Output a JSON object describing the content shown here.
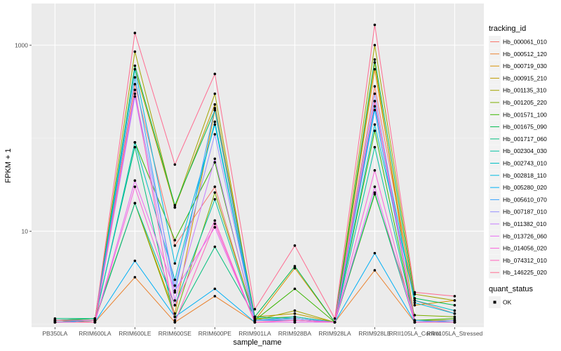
{
  "chart_data": {
    "type": "line",
    "title": "",
    "xlabel": "sample_name",
    "ylabel": "FPKM + 1",
    "yscale": "log10",
    "ylim": [
      0.93,
      2800
    ],
    "yticks": [
      10,
      1000
    ],
    "ytick_labels": [
      "10",
      "1000"
    ],
    "grid": true,
    "categories": [
      "PB350LA",
      "RRIM600LA",
      "RRIM600LE",
      "RRIM600SE",
      "RRIM600PE",
      "RRIM901LA",
      "RRIM928BA",
      "RRIM928LA",
      "RRIM928LE",
      "RRII105LA_Control",
      "RRII105LA_Stressed"
    ],
    "legend": {
      "position": "right",
      "color_title": "tracking_id",
      "shape_title": "quant_status",
      "shape_entries": [
        "OK"
      ]
    },
    "series": [
      {
        "name": "Hb_000061_010",
        "color": "#F8766D",
        "values": [
          1.05,
          1.1,
          380,
          7.0,
          30,
          1.1,
          1.1,
          1.05,
          360,
          1.8,
          1.3
        ]
      },
      {
        "name": "Hb_000512_120",
        "color": "#EA8331",
        "values": [
          1.1,
          1.05,
          3.2,
          1.05,
          2.0,
          1.05,
          1.05,
          1.05,
          3.8,
          1.05,
          1.05
        ]
      },
      {
        "name": "Hb_000719_030",
        "color": "#D89000",
        "values": [
          1.05,
          1.1,
          20,
          1.3,
          200,
          1.1,
          4.0,
          1.05,
          550,
          1.6,
          1.8
        ]
      },
      {
        "name": "Hb_000915_210",
        "color": "#C09B00",
        "values": [
          1.1,
          1.1,
          550,
          18,
          230,
          1.2,
          1.3,
          1.05,
          650,
          1.1,
          1.1
        ]
      },
      {
        "name": "Hb_001135_310",
        "color": "#A3A500",
        "values": [
          1.05,
          1.1,
          850,
          18,
          300,
          1.1,
          1.4,
          1.05,
          1000,
          2.1,
          1.8
        ]
      },
      {
        "name": "Hb_001205_220",
        "color": "#7CAE00",
        "values": [
          1.1,
          1.15,
          20,
          1.2,
          26,
          1.15,
          1.2,
          1.05,
          25,
          1.25,
          1.2
        ]
      },
      {
        "name": "Hb_001571_100",
        "color": "#39B600",
        "values": [
          1.05,
          1.1,
          90,
          8.0,
          55,
          1.1,
          2.4,
          1.05,
          120,
          1.1,
          1.15
        ]
      },
      {
        "name": "Hb_001675_090",
        "color": "#00BB4E",
        "values": [
          1.1,
          1.15,
          600,
          19,
          200,
          1.2,
          4.2,
          1.05,
          700,
          1.9,
          1.6
        ]
      },
      {
        "name": "Hb_001717_060",
        "color": "#00BF7D",
        "values": [
          1.15,
          1.15,
          80,
          1.1,
          6.8,
          1.2,
          1.15,
          1.05,
          26,
          1.05,
          1.1
        ]
      },
      {
        "name": "Hb_002304_030",
        "color": "#00C1A3",
        "values": [
          1.1,
          1.1,
          20,
          1.6,
          22,
          1.1,
          1.1,
          1.05,
          80,
          1.1,
          1.05
        ]
      },
      {
        "name": "Hb_002743_010",
        "color": "#00BFC4",
        "values": [
          1.05,
          1.1,
          90,
          3.0,
          150,
          1.1,
          1.2,
          1.05,
          140,
          1.8,
          1.4
        ]
      },
      {
        "name": "Hb_002818_110",
        "color": "#00BAE0",
        "values": [
          1.05,
          1.1,
          550,
          4.5,
          140,
          1.1,
          1.15,
          1.05,
          220,
          1.7,
          1.3
        ]
      },
      {
        "name": "Hb_005280_020",
        "color": "#00B0F6",
        "values": [
          1.05,
          1.05,
          4.8,
          1.2,
          2.4,
          1.05,
          1.05,
          1.05,
          5.8,
          1.05,
          1.05
        ]
      },
      {
        "name": "Hb_005610_070",
        "color": "#35A2FF",
        "values": [
          1.05,
          1.1,
          450,
          2.2,
          210,
          1.1,
          1.1,
          1.05,
          200,
          1.1,
          1.05
        ]
      },
      {
        "name": "Hb_007187_010",
        "color": "#9590FF",
        "values": [
          1.1,
          1.1,
          300,
          2.6,
          110,
          1.1,
          1.15,
          1.05,
          300,
          1.05,
          1.1
        ]
      },
      {
        "name": "Hb_011382_010",
        "color": "#C77CFF",
        "values": [
          1.05,
          1.05,
          280,
          1.8,
          60,
          1.05,
          1.05,
          1.05,
          250,
          1.05,
          1.05
        ]
      },
      {
        "name": "Hb_013726_060",
        "color": "#E76BF3",
        "values": [
          1.05,
          1.05,
          35,
          2.3,
          11,
          1.05,
          1.05,
          1.05,
          30,
          1.05,
          1.05
        ]
      },
      {
        "name": "Hb_014056_020",
        "color": "#FA62DB",
        "values": [
          1.05,
          1.05,
          30,
          1.6,
          13,
          1.05,
          1.1,
          1.05,
          45,
          1.05,
          1.05
        ]
      },
      {
        "name": "Hb_074312_010",
        "color": "#FF62BC",
        "values": [
          1.05,
          1.05,
          330,
          1.05,
          12,
          1.05,
          1.1,
          1.05,
          250,
          1.05,
          1.05
        ]
      },
      {
        "name": "Hb_146225_020",
        "color": "#FF6C91",
        "values": [
          1.1,
          1.1,
          1350,
          52,
          490,
          1.45,
          7.0,
          1.15,
          1650,
          2.2,
          2.0
        ]
      }
    ]
  }
}
